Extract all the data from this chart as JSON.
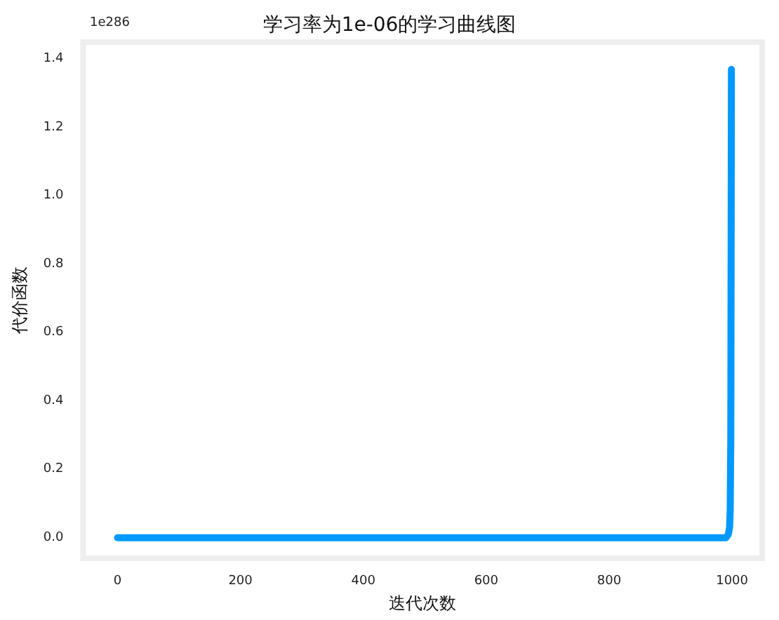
{
  "chart_data": {
    "type": "line",
    "title": "学习率为1e-06的学习曲线图",
    "xlabel": "迭代次数",
    "ylabel": "代价函数",
    "annotations": [
      "1e286"
    ],
    "x": [
      0,
      100,
      200,
      300,
      400,
      500,
      600,
      700,
      800,
      900,
      980,
      990,
      994,
      996,
      997,
      998,
      999
    ],
    "series": [
      {
        "color": "#0099ff",
        "values": [
          0,
          0,
          0,
          0,
          0,
          0,
          0,
          0,
          0,
          0,
          0,
          0,
          0.01,
          0.03,
          0.08,
          0.3,
          1.37
        ]
      }
    ],
    "xlim": [
      -56,
      1049
    ],
    "xticks": [
      0,
      200,
      400,
      600,
      800,
      1000
    ],
    "ylim": [
      -0.06,
      1.45
    ],
    "yticks": [
      {
        "value": 0,
        "label": "0.0"
      },
      0.2,
      0.4,
      0.6,
      0.8,
      {
        "value": 1,
        "label": "1.0"
      },
      1.2,
      1.4
    ],
    "grid": false,
    "marker": "none",
    "line_style": "solid"
  }
}
